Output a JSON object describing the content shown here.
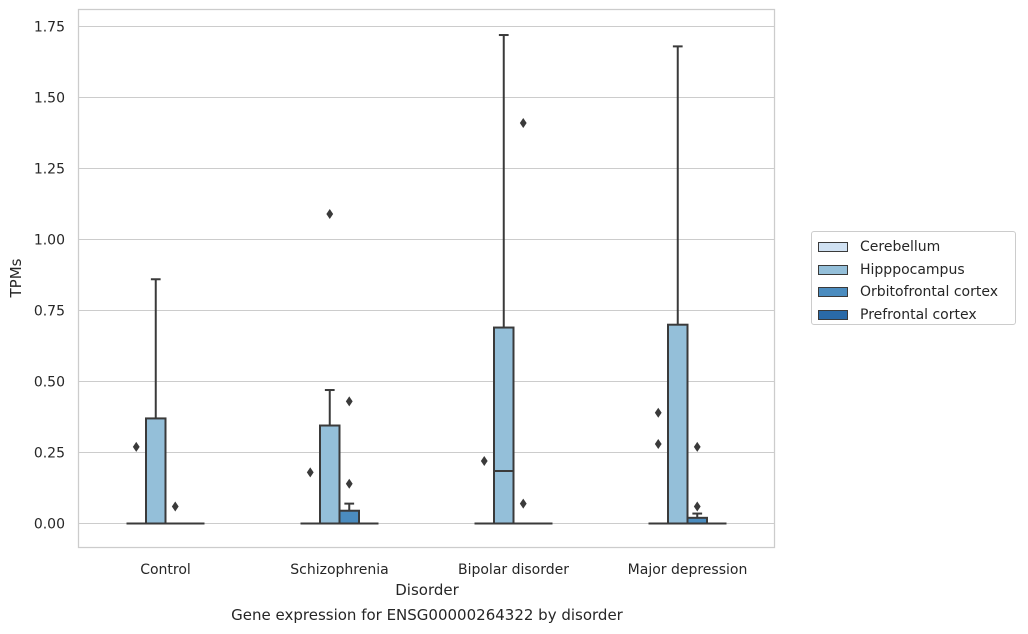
{
  "chart_data": {
    "type": "box",
    "caption": "Gene expression for ENSG00000264322 by disorder",
    "xlabel": "Disorder",
    "ylabel": "TPMs",
    "ylim": [
      -0.085,
      1.81
    ],
    "yticks": [
      "0.00",
      "0.25",
      "0.50",
      "0.75",
      "1.00",
      "1.25",
      "1.50",
      "1.75"
    ],
    "ytick_values": [
      0,
      0.25,
      0.5,
      0.75,
      1.0,
      1.25,
      1.5,
      1.75
    ],
    "categories": [
      "Control",
      "Schizophrenia",
      "Bipolar disorder",
      "Major depression"
    ],
    "grid": true,
    "legend_position": "right",
    "series": [
      {
        "name": "Cerebellum",
        "color": "#d0e1f2",
        "boxes": [
          {
            "q1": 0,
            "median": 0,
            "q3": 0,
            "whislo": 0,
            "whishi": 0,
            "fliers": [
              0.27
            ]
          },
          {
            "q1": 0,
            "median": 0,
            "q3": 0,
            "whislo": 0,
            "whishi": 0,
            "fliers": [
              0.18
            ]
          },
          {
            "q1": 0,
            "median": 0,
            "q3": 0,
            "whislo": 0,
            "whishi": 0,
            "fliers": [
              0.22
            ]
          },
          {
            "q1": 0,
            "median": 0,
            "q3": 0,
            "whislo": 0,
            "whishi": 0,
            "fliers": [
              0.28,
              0.39
            ]
          }
        ]
      },
      {
        "name": "Hipppocampus",
        "color": "#94bfd9",
        "boxes": [
          {
            "q1": 0,
            "median": 0,
            "q3": 0.37,
            "whislo": 0,
            "whishi": 0.86,
            "fliers": []
          },
          {
            "q1": 0,
            "median": 0,
            "q3": 0.345,
            "whislo": 0,
            "whishi": 0.47,
            "fliers": [
              1.09
            ]
          },
          {
            "q1": 0,
            "median": 0.185,
            "q3": 0.69,
            "whislo": 0,
            "whishi": 1.72,
            "fliers": []
          },
          {
            "q1": 0,
            "median": 0,
            "q3": 0.7,
            "whislo": 0,
            "whishi": 1.68,
            "fliers": []
          }
        ]
      },
      {
        "name": "Orbitofrontal cortex",
        "color": "#4b8cbf",
        "boxes": [
          {
            "q1": 0,
            "median": 0,
            "q3": 0,
            "whislo": 0,
            "whishi": 0,
            "fliers": [
              0.06
            ]
          },
          {
            "q1": 0,
            "median": 0,
            "q3": 0.045,
            "whislo": 0,
            "whishi": 0.07,
            "fliers": [
              0.14,
              0.43
            ]
          },
          {
            "q1": 0,
            "median": 0,
            "q3": 0,
            "whislo": 0,
            "whishi": 0,
            "fliers": [
              0.07,
              1.41
            ]
          },
          {
            "q1": 0,
            "median": 0,
            "q3": 0.02,
            "whislo": 0,
            "whishi": 0.035,
            "fliers": [
              0.06,
              0.27
            ]
          }
        ]
      },
      {
        "name": "Prefrontal cortex",
        "color": "#2a6aa8",
        "boxes": [
          {
            "q1": 0,
            "median": 0,
            "q3": 0,
            "whislo": 0,
            "whishi": 0,
            "fliers": []
          },
          {
            "q1": 0,
            "median": 0,
            "q3": 0,
            "whislo": 0,
            "whishi": 0,
            "fliers": []
          },
          {
            "q1": 0,
            "median": 0,
            "q3": 0,
            "whislo": 0,
            "whishi": 0,
            "fliers": []
          },
          {
            "q1": 0,
            "median": 0,
            "q3": 0,
            "whislo": 0,
            "whishi": 0,
            "fliers": []
          }
        ]
      }
    ]
  }
}
